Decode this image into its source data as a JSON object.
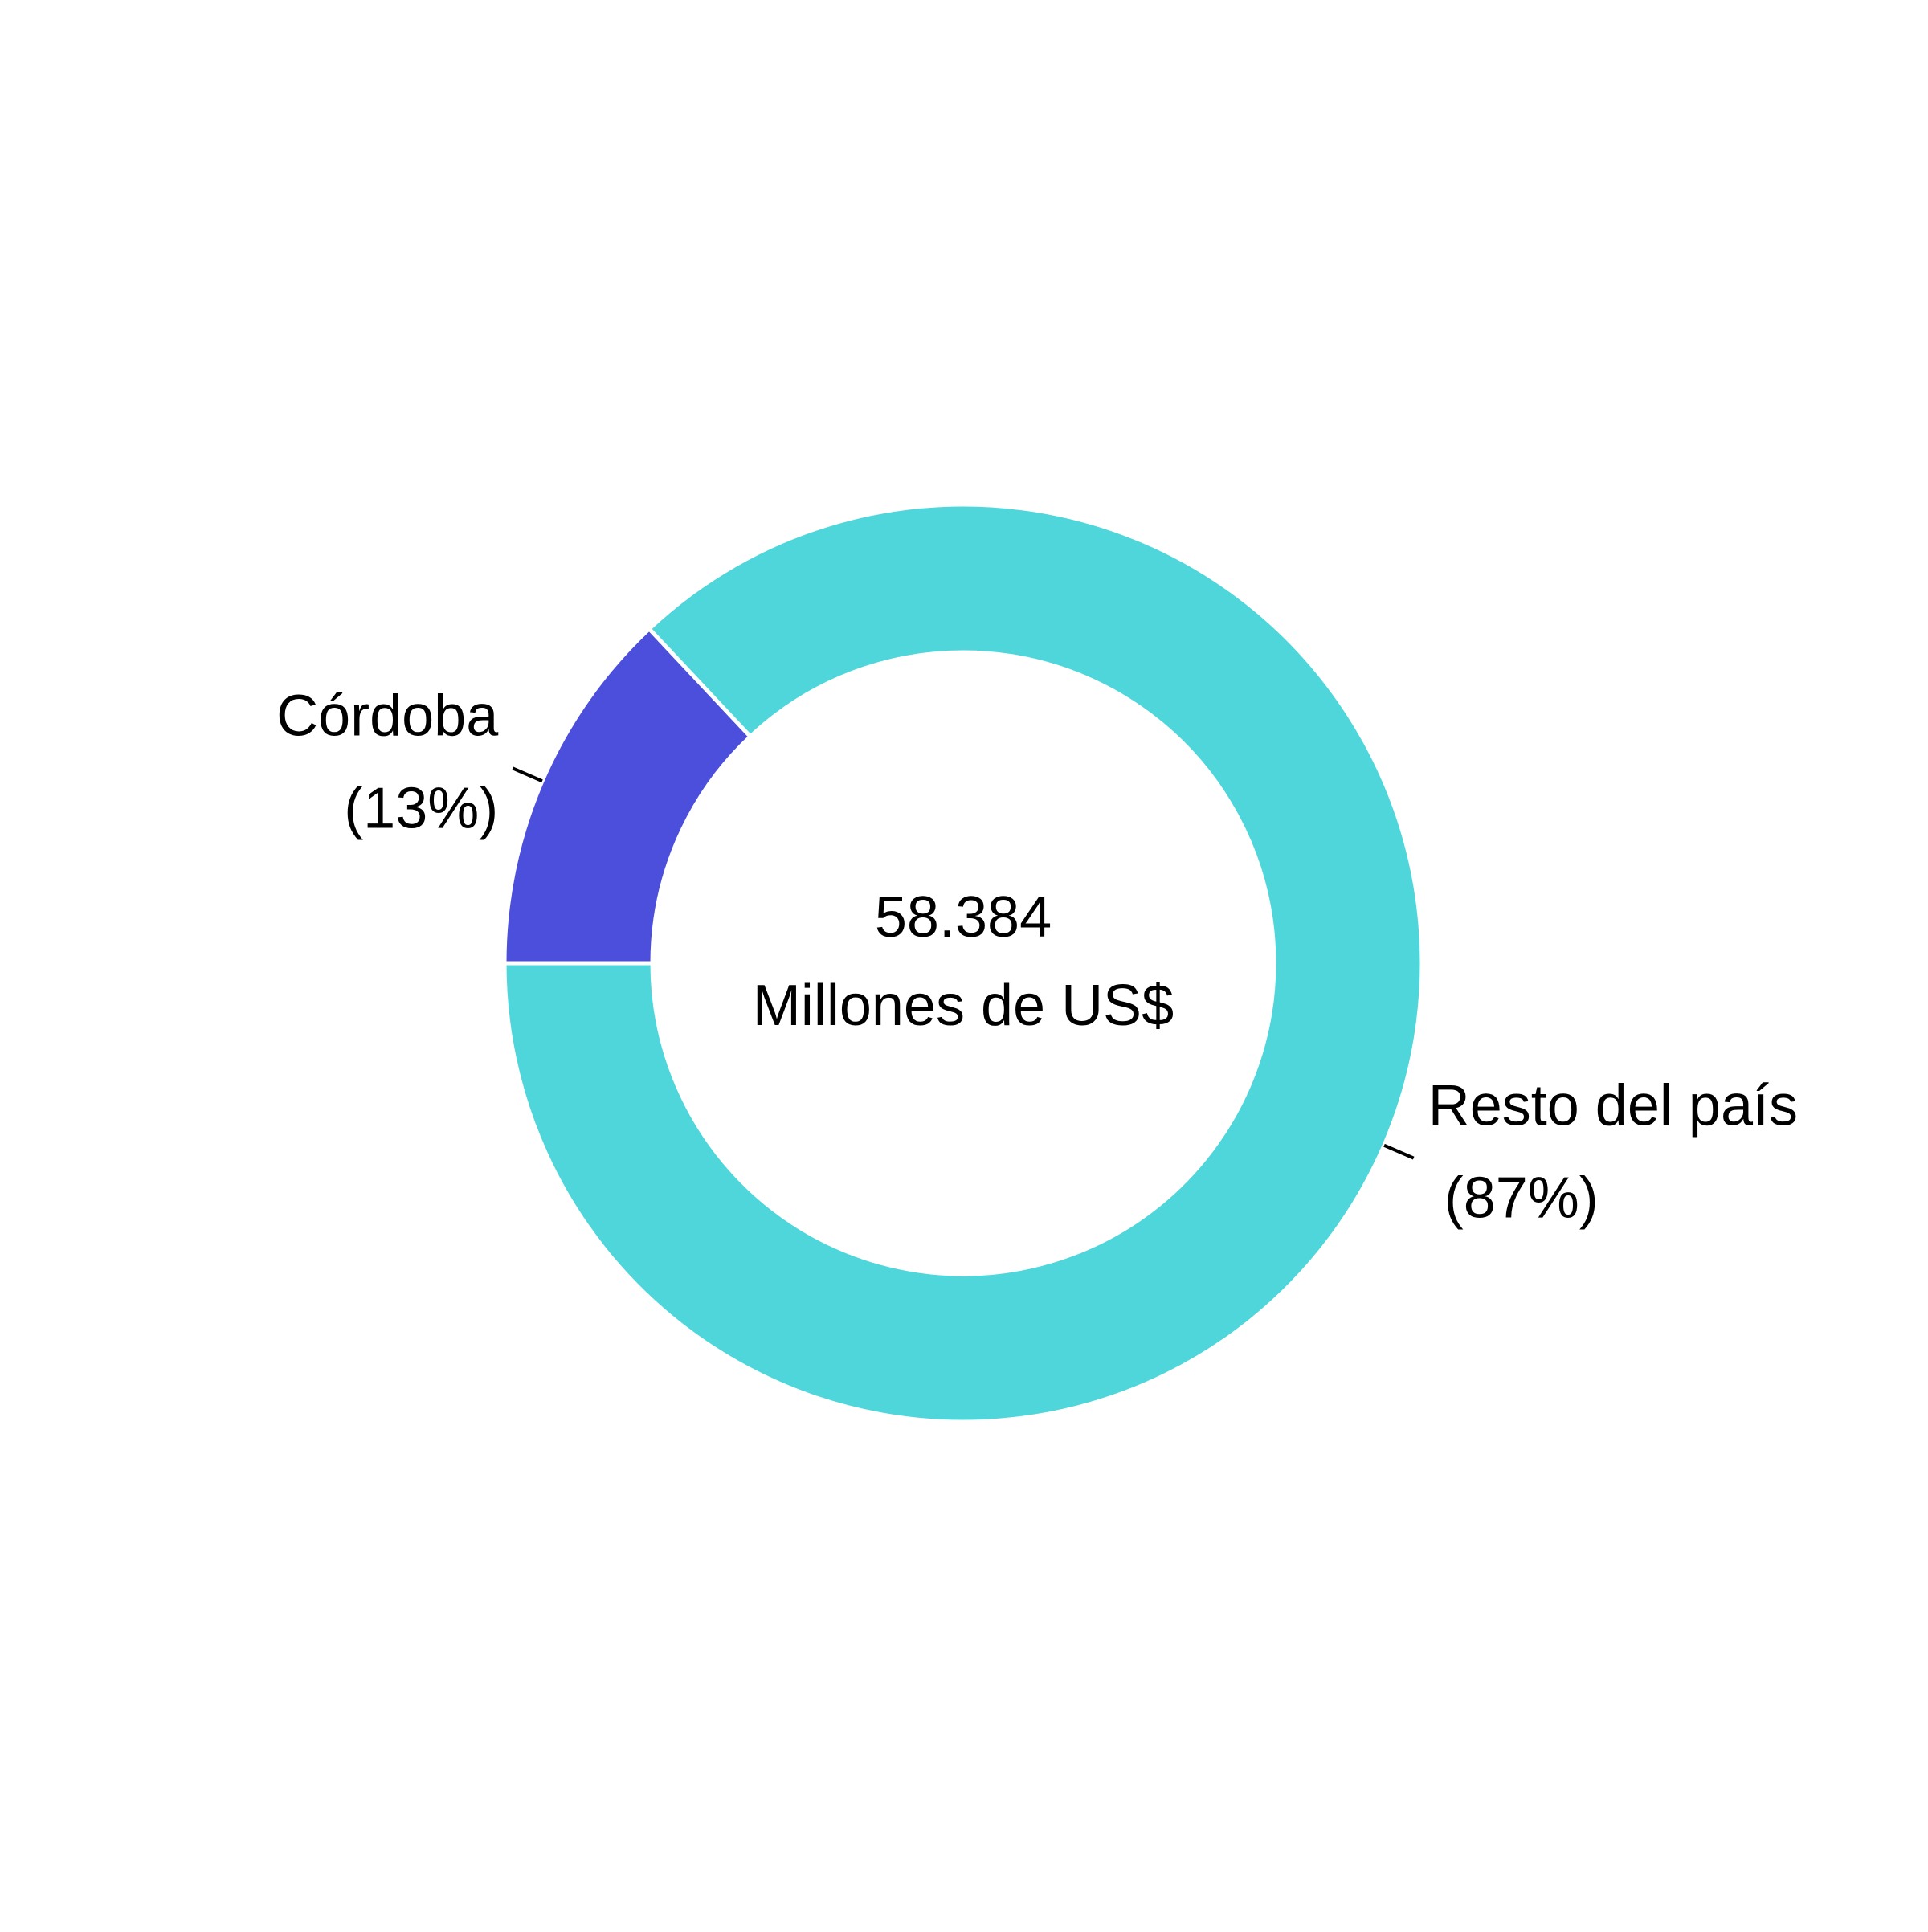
{
  "chart_data": {
    "type": "donut",
    "categories": [
      "Córdoba",
      "Resto del país"
    ],
    "values": [
      13,
      87
    ],
    "value_labels": [
      "(13%)",
      "(87%)"
    ],
    "colors": [
      "#4c4fdb",
      "#4fd6db"
    ],
    "center_text": [
      "58.384",
      "Millones de US$"
    ]
  }
}
